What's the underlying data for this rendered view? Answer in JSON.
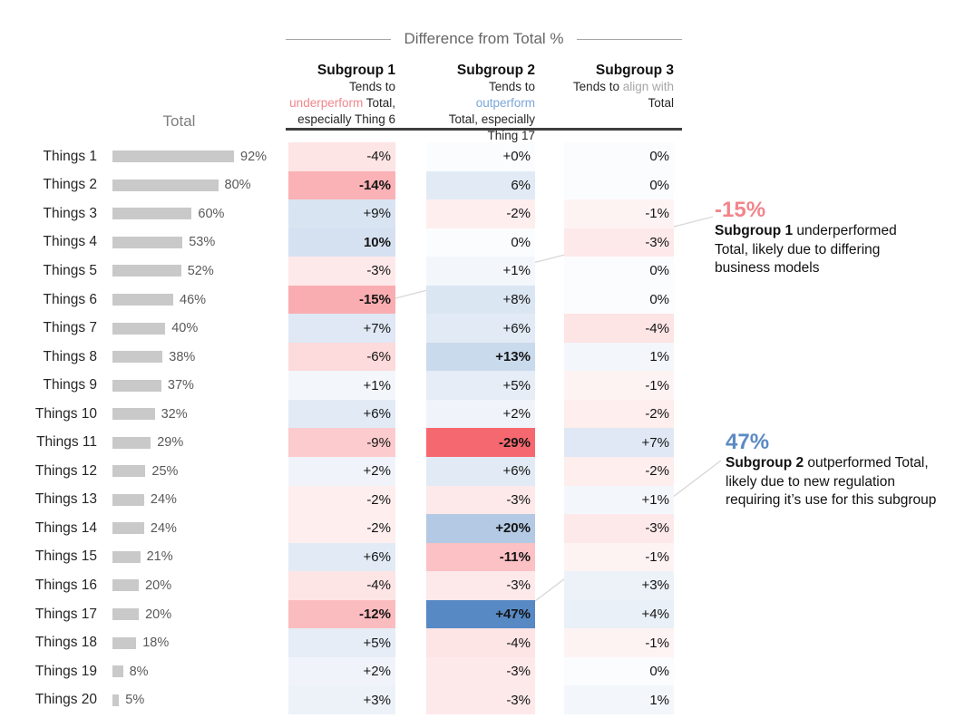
{
  "title": "Difference from Total %",
  "total_label": "Total",
  "colors": {
    "negative_max": "#f6686f",
    "positive_max": "#5789c4",
    "zero_bg": "#fbfcfe",
    "bar": "#c9c9c9",
    "callout_line": "#d9d9d9",
    "rule": "#3d3d3d",
    "annotation_negative": "#f2848b",
    "annotation_positive": "#5b8ac4",
    "highlight_underperform": "#f0868c",
    "highlight_outperform": "#7ba6d9",
    "highlight_align": "#a6a6a6"
  },
  "scale": {
    "negative_max": 29,
    "positive_max": 47,
    "min_tint": 0.05
  },
  "columns": [
    {
      "name": "Subgroup 1",
      "desc_lines": [
        "Tends to",
        "underperform Total,",
        "especially Thing 6"
      ],
      "highlight": "underperform",
      "highlight_color": "#f0868c"
    },
    {
      "name": "Subgroup 2",
      "desc_lines": [
        "Tends to outperform",
        "Total, especially",
        "Thing 17"
      ],
      "highlight": "outperform",
      "highlight_color": "#7ba6d9"
    },
    {
      "name": "Subgroup 3",
      "desc_lines": [
        "Tends to align with",
        "Total"
      ],
      "highlight": "align with",
      "highlight_color": "#a6a6a6"
    }
  ],
  "chart_data": {
    "type": "heatmap",
    "title": "Difference from Total %",
    "categories": [
      "Things 1",
      "Things 2",
      "Things 3",
      "Things 4",
      "Things 5",
      "Things 6",
      "Things 7",
      "Things 8",
      "Things 9",
      "Things 10",
      "Things 11",
      "Things 12",
      "Things 13",
      "Things 14",
      "Things 15",
      "Things 16",
      "Things 17",
      "Things 18",
      "Things 19",
      "Things 20"
    ],
    "total": {
      "label": "Total",
      "values": [
        92,
        80,
        60,
        53,
        52,
        46,
        40,
        38,
        37,
        32,
        29,
        25,
        24,
        24,
        21,
        20,
        20,
        18,
        8,
        5
      ],
      "display": [
        "92%",
        "80%",
        "60%",
        "53%",
        "52%",
        "46%",
        "40%",
        "38%",
        "37%",
        "32%",
        "29%",
        "25%",
        "24%",
        "24%",
        "21%",
        "20%",
        "20%",
        "18%",
        "8%",
        "5%"
      ]
    },
    "series": [
      {
        "name": "Subgroup 1",
        "values": [
          -4,
          -14,
          9,
          10,
          -3,
          -15,
          7,
          -6,
          1,
          6,
          -9,
          2,
          -2,
          -2,
          6,
          -4,
          -12,
          5,
          2,
          3
        ],
        "display": [
          "-4%",
          "-14%",
          "+9%",
          "10%",
          "-3%",
          "-15%",
          "+7%",
          "-6%",
          "+1%",
          "+6%",
          "-9%",
          "+2%",
          "-2%",
          "-2%",
          "+6%",
          "-4%",
          "-12%",
          "+5%",
          "+2%",
          "+3%"
        ],
        "bold_indices": [
          1,
          3,
          5,
          16
        ]
      },
      {
        "name": "Subgroup 2",
        "values": [
          0,
          6,
          -2,
          0,
          1,
          8,
          6,
          13,
          5,
          2,
          -29,
          6,
          -3,
          20,
          -11,
          -3,
          47,
          -4,
          -3,
          -3
        ],
        "display": [
          "+0%",
          "6%",
          "-2%",
          "0%",
          "+1%",
          "+8%",
          "+6%",
          "+13%",
          "+5%",
          "+2%",
          "-29%",
          "+6%",
          "-3%",
          "+20%",
          "-11%",
          "-3%",
          "+47%",
          "-4%",
          "-3%",
          "-3%"
        ],
        "bold_indices": [
          7,
          10,
          13,
          14,
          16
        ]
      },
      {
        "name": "Subgroup 3",
        "values": [
          0,
          0,
          -1,
          -3,
          0,
          0,
          -4,
          1,
          -1,
          -2,
          7,
          -2,
          1,
          -3,
          -1,
          3,
          4,
          -1,
          0,
          1
        ],
        "display": [
          "0%",
          "0%",
          "-1%",
          "-3%",
          "0%",
          "0%",
          "-4%",
          "1%",
          "-1%",
          "-2%",
          "+7%",
          "-2%",
          "+1%",
          "-3%",
          "-1%",
          "+3%",
          "+4%",
          "-1%",
          "0%",
          "1%"
        ],
        "bold_indices": []
      }
    ]
  },
  "annotations": [
    {
      "headline": "-15%",
      "headline_color": "#f2848b",
      "bold_text": "Subgroup 1",
      "lines": [
        "Subgroup 1 underperformed",
        "Total, likely due to differing",
        "business models"
      ]
    },
    {
      "headline": "47%",
      "headline_color": "#5b8ac4",
      "bold_text": "Subgroup 2",
      "lines": [
        "Subgroup 2 outperformed Total,",
        "likely due to new regulation",
        "requiring it’s use for this subgroup"
      ]
    }
  ]
}
